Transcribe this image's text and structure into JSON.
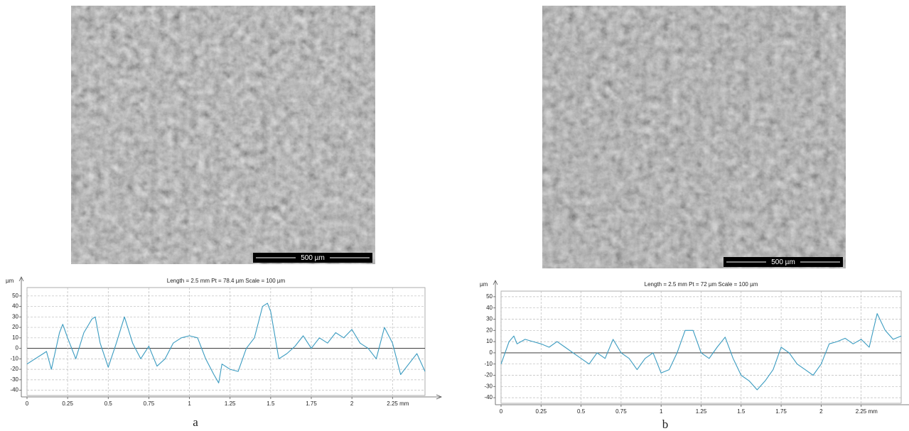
{
  "chart_data": [
    {
      "type": "line",
      "caption": "a",
      "scale_bar": "500 µm",
      "title": "Length = 2.5 mm  Pt = 78.4 µm  Scale = 100 µm",
      "y_label": "µm",
      "x": [
        0,
        0.05,
        0.1,
        0.12,
        0.15,
        0.2,
        0.22,
        0.25,
        0.3,
        0.35,
        0.4,
        0.42,
        0.45,
        0.5,
        0.55,
        0.6,
        0.65,
        0.7,
        0.75,
        0.8,
        0.85,
        0.9,
        0.95,
        1.0,
        1.05,
        1.1,
        1.15,
        1.18,
        1.2,
        1.25,
        1.3,
        1.35,
        1.4,
        1.45,
        1.48,
        1.5,
        1.55,
        1.6,
        1.65,
        1.7,
        1.75,
        1.8,
        1.85,
        1.9,
        1.95,
        2.0,
        2.05,
        2.1,
        2.15,
        2.2,
        2.25,
        2.3,
        2.35,
        2.4,
        2.45
      ],
      "series": [
        {
          "color": "#3a9bc0",
          "values": [
            -15,
            -10,
            -5,
            -3,
            -20,
            15,
            23,
            10,
            -10,
            15,
            28,
            30,
            5,
            -18,
            5,
            30,
            5,
            -10,
            2,
            -17,
            -10,
            5,
            10,
            12,
            10,
            -10,
            -25,
            -33,
            -15,
            -20,
            -22,
            0,
            10,
            40,
            43,
            35,
            -10,
            -5,
            2,
            12,
            0,
            10,
            5,
            15,
            10,
            18,
            5,
            0,
            -10,
            20,
            5,
            -25,
            -15,
            -5,
            -22
          ]
        }
      ],
      "xlim": [
        0,
        2.45
      ],
      "ylim": [
        -45,
        58
      ],
      "xticks": [
        0,
        0.25,
        0.5,
        0.75,
        1,
        1.25,
        1.5,
        1.75,
        2,
        {
          "value": 2.25,
          "label": "2.25 mm"
        }
      ],
      "yticks": [
        -40,
        -30,
        -20,
        -10,
        0,
        10,
        20,
        30,
        40,
        50
      ],
      "grid": true
    },
    {
      "type": "line",
      "caption": "b",
      "scale_bar": "500 µm",
      "title": "Length = 2.5 mm  Pt = 72 µm  Scale = 100 µm",
      "y_label": "µm",
      "x": [
        0,
        0.05,
        0.08,
        0.1,
        0.15,
        0.2,
        0.25,
        0.3,
        0.35,
        0.4,
        0.45,
        0.5,
        0.55,
        0.6,
        0.65,
        0.7,
        0.75,
        0.8,
        0.85,
        0.9,
        0.95,
        1.0,
        1.05,
        1.1,
        1.15,
        1.2,
        1.25,
        1.3,
        1.35,
        1.4,
        1.45,
        1.5,
        1.55,
        1.6,
        1.65,
        1.7,
        1.75,
        1.8,
        1.85,
        1.9,
        1.95,
        2.0,
        2.05,
        2.1,
        2.15,
        2.2,
        2.25,
        2.3,
        2.35,
        2.4,
        2.45,
        2.5
      ],
      "series": [
        {
          "color": "#3a9bc0",
          "values": [
            -10,
            10,
            15,
            8,
            12,
            10,
            8,
            5,
            10,
            5,
            0,
            -5,
            -10,
            0,
            -5,
            12,
            0,
            -5,
            -15,
            -5,
            0,
            -18,
            -15,
            0,
            20,
            20,
            0,
            -5,
            5,
            14,
            -5,
            -20,
            -25,
            -33,
            -25,
            -15,
            5,
            0,
            -10,
            -15,
            -20,
            -10,
            8,
            10,
            13,
            8,
            12,
            5,
            35,
            20,
            12,
            15
          ]
        }
      ],
      "xlim": [
        0,
        2.5
      ],
      "ylim": [
        -45,
        55
      ],
      "xticks": [
        0,
        0.25,
        0.5,
        0.75,
        1,
        1.25,
        1.5,
        1.75,
        2,
        {
          "value": 2.25,
          "label": "2.25 mm"
        }
      ],
      "yticks": [
        -40,
        -30,
        -20,
        -10,
        0,
        10,
        20,
        30,
        40,
        50
      ],
      "grid": true
    }
  ]
}
